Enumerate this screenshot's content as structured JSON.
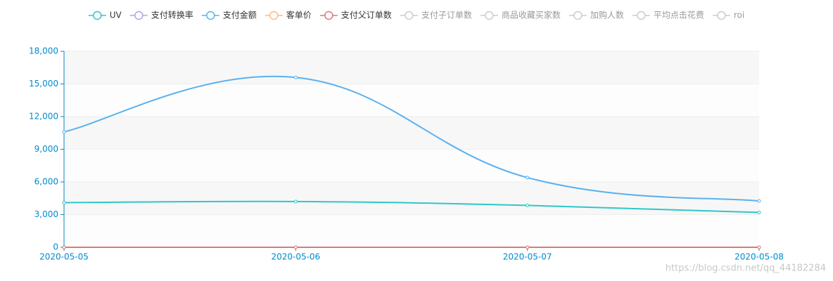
{
  "chart_data": {
    "type": "line",
    "x": [
      "2020-05-05",
      "2020-05-06",
      "2020-05-07",
      "2020-05-08"
    ],
    "series": [
      {
        "name": "UV",
        "color": "#2ec7c9",
        "selected": true,
        "values": [
          4100,
          4200,
          3850,
          3200
        ]
      },
      {
        "name": "支付转换率",
        "color": "#b6a2de",
        "selected": true,
        "values": [
          0,
          0,
          0,
          0
        ]
      },
      {
        "name": "支付金额",
        "color": "#5ab1ef",
        "selected": true,
        "values": [
          10600,
          15600,
          6400,
          4250
        ]
      },
      {
        "name": "客单价",
        "color": "#ffb980",
        "selected": true,
        "values": [
          0,
          0,
          0,
          0
        ]
      },
      {
        "name": "支付父订单数",
        "color": "#d87a80",
        "selected": true,
        "values": [
          0,
          0,
          0,
          0
        ]
      },
      {
        "name": "支付子订单数",
        "selected": false,
        "values": [
          null,
          null,
          null,
          null
        ]
      },
      {
        "name": "商品收藏买家数",
        "selected": false,
        "values": [
          null,
          null,
          null,
          null
        ]
      },
      {
        "name": "加购人数",
        "selected": false,
        "values": [
          null,
          null,
          null,
          null
        ]
      },
      {
        "name": "平均点击花费",
        "selected": false,
        "values": [
          null,
          null,
          null,
          null
        ]
      },
      {
        "name": "roi",
        "selected": false,
        "values": [
          null,
          null,
          null,
          null
        ]
      }
    ],
    "ylim": [
      0,
      18000
    ],
    "yticks": [
      0,
      {
        "value": 3000,
        "label": "3,000"
      },
      {
        "value": 6000,
        "label": "6,000"
      },
      {
        "value": 9000,
        "label": "9,000"
      },
      {
        "value": 12000,
        "label": "12,000"
      },
      {
        "value": 15000,
        "label": "15,000"
      },
      {
        "value": 18000,
        "label": "18,000"
      }
    ],
    "smooth": true,
    "split_area": true,
    "legend_position": "top"
  },
  "watermark": "https://blog.csdn.net/qq_44182284"
}
